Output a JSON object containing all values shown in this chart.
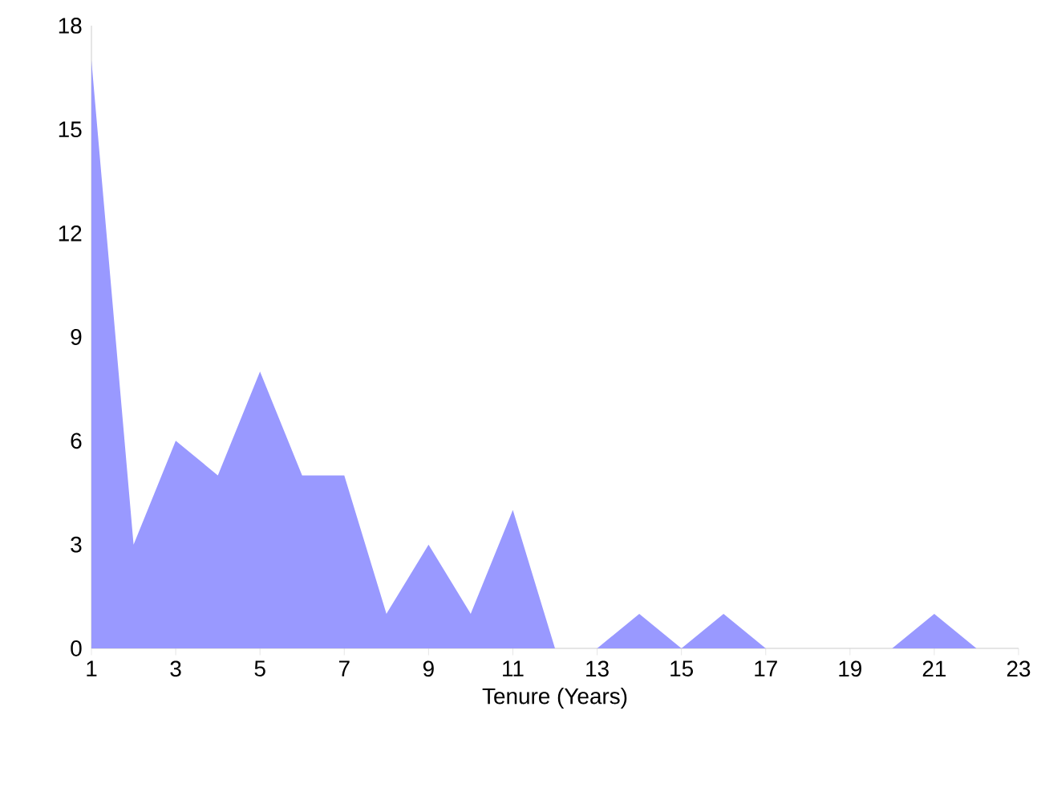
{
  "chart_data": {
    "type": "area",
    "xlabel": "Tenure (Years)",
    "color": "#9999ff",
    "x": [
      1,
      2,
      3,
      4,
      5,
      6,
      7,
      8,
      9,
      10,
      11,
      12,
      13,
      14,
      15,
      16,
      17,
      18,
      19,
      20,
      21,
      22
    ],
    "values": [
      17,
      3,
      6,
      5,
      8,
      5,
      5,
      1,
      3,
      1,
      4,
      0,
      0,
      1,
      0,
      1,
      0,
      0,
      0,
      0,
      1,
      0
    ],
    "xlim": [
      1,
      23
    ],
    "xticks": [
      1,
      3,
      5,
      7,
      9,
      11,
      13,
      15,
      17,
      19,
      21,
      23
    ],
    "ylim": [
      0,
      18
    ],
    "yticks": [
      0,
      3,
      6,
      9,
      12,
      15,
      18
    ],
    "grid": false
  }
}
